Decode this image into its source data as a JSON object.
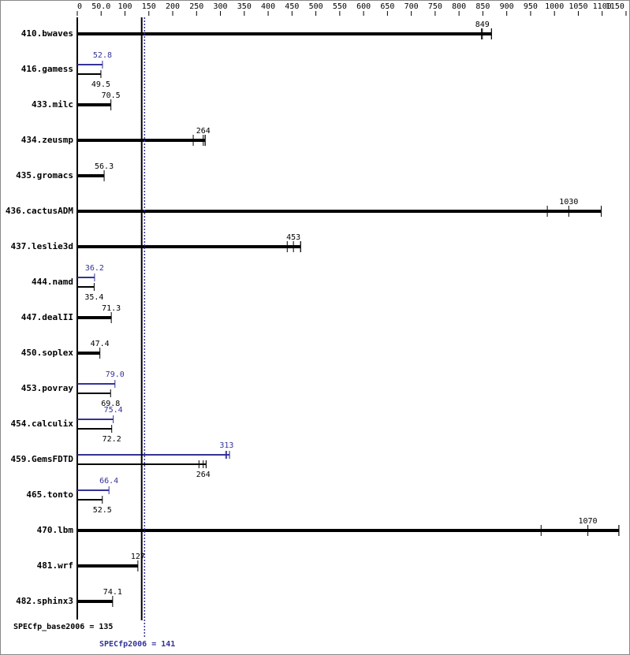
{
  "chart_data": {
    "type": "spec-bar",
    "categories": [
      "410.bwaves",
      "416.gamess",
      "433.milc",
      "434.zeusmp",
      "435.gromacs",
      "436.cactusADM",
      "437.leslie3d",
      "444.namd",
      "447.dealII",
      "450.soplex",
      "453.povray",
      "454.calculix",
      "459.GemsFDTD",
      "465.tonto",
      "470.lbm",
      "481.wrf",
      "482.sphinx3"
    ],
    "series": [
      {
        "color": "#000000",
        "values": [
          849,
          49.5,
          70.5,
          264,
          56.3,
          1030,
          453,
          35.4,
          71.3,
          47.4,
          69.8,
          72.2,
          264,
          52.5,
          1070,
          127,
          74.1
        ],
        "runs": [
          [
            847,
            849,
            868
          ],
          null,
          null,
          [
            243,
            264,
            268
          ],
          null,
          [
            985,
            1030,
            1098
          ],
          [
            440,
            453,
            468
          ],
          null,
          null,
          null,
          null,
          null,
          [
            255,
            264,
            270
          ],
          null,
          [
            972,
            1070,
            1135
          ],
          null,
          null
        ]
      },
      {
        "color": "#333399",
        "values": [
          null,
          52.8,
          null,
          null,
          null,
          null,
          null,
          36.2,
          null,
          null,
          79.0,
          75.4,
          313,
          66.4,
          null,
          null,
          null
        ],
        "value_labels": [
          null,
          null,
          null,
          null,
          null,
          null,
          null,
          null,
          null,
          null,
          "79.0",
          null,
          null,
          null,
          null,
          null,
          null
        ],
        "runs": [
          null,
          null,
          null,
          null,
          null,
          null,
          null,
          null,
          null,
          null,
          null,
          null,
          [
            311,
            313,
            319
          ],
          null,
          null,
          null,
          null
        ]
      }
    ],
    "xlim": [
      0,
      1155
    ],
    "xticks": [
      0,
      {
        "value": 50,
        "label": "50.0"
      },
      100,
      150,
      200,
      250,
      300,
      350,
      400,
      450,
      500,
      550,
      600,
      650,
      700,
      750,
      800,
      850,
      900,
      950,
      1000,
      1050,
      1100,
      1150
    ],
    "summary": [
      {
        "label": "SPECfp_base2006 = 135",
        "value": 135,
        "color": "#000000"
      },
      {
        "label": "SPECfp2006 = 141",
        "value": 141,
        "color": "#333399"
      }
    ]
  }
}
